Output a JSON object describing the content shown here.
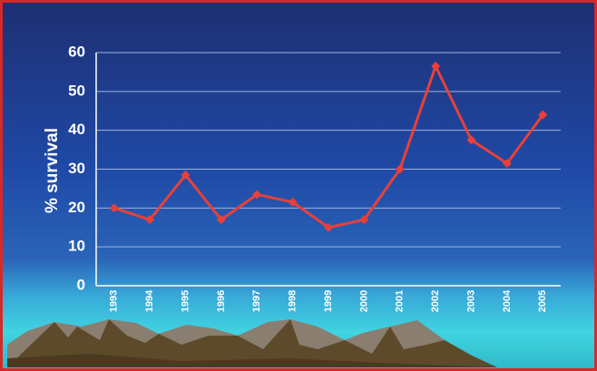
{
  "chart_data": {
    "type": "line",
    "y_label": "% survival",
    "categories": [
      "1993",
      "1994",
      "1995",
      "1996",
      "1997",
      "1998",
      "1999",
      "2000",
      "2001",
      "2002",
      "2003",
      "2004",
      "2005"
    ],
    "series": [
      {
        "name": "survival",
        "color": "#e8403a",
        "values": [
          20,
          17,
          28.5,
          17,
          23.5,
          21.5,
          15,
          17,
          30,
          56.5,
          37.5,
          31.5,
          44
        ]
      }
    ],
    "ylim": [
      0,
      60
    ],
    "yticks": [
      0,
      10,
      20,
      30,
      40,
      50,
      60
    ],
    "grid": true
  }
}
